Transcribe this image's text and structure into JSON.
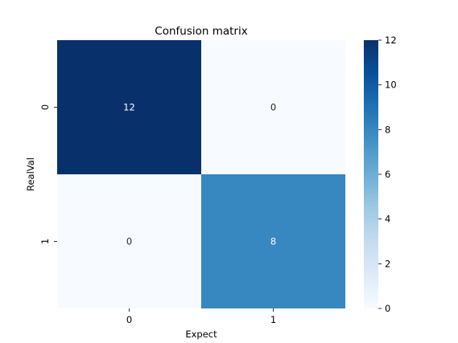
{
  "chart_data": {
    "type": "heatmap",
    "title": "Confusion matrix",
    "xlabel": "Expect",
    "ylabel": "RealVal",
    "x_categories": [
      "0",
      "1"
    ],
    "y_categories": [
      "0",
      "1"
    ],
    "values": [
      [
        12,
        0
      ],
      [
        0,
        8
      ]
    ],
    "colorbar": {
      "range": [
        0,
        12
      ],
      "ticks": [
        "0",
        "2",
        "4",
        "6",
        "8",
        "10",
        "12"
      ],
      "colormap": "Blues",
      "low_color": "#f7fbff",
      "high_color": "#08306b"
    },
    "annotations": true
  }
}
